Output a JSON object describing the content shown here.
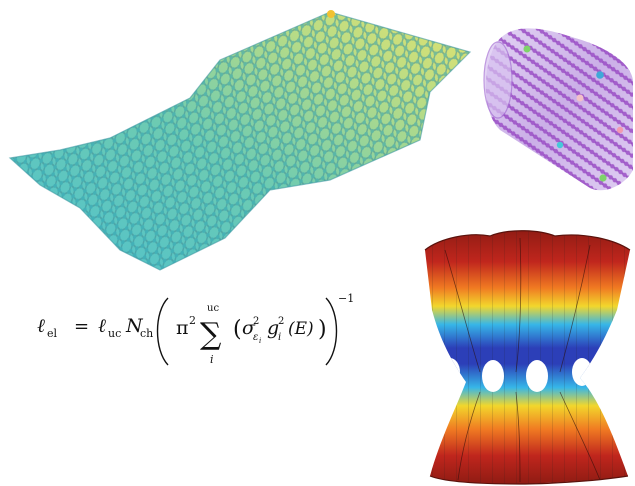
{
  "formula": {
    "lhs_symbol": "ℓ",
    "lhs_sub": "el",
    "equals": "=",
    "rhs_symbol": "ℓ",
    "rhs_sub": "uc",
    "n_symbol": "N",
    "n_sub": "ch",
    "pi": "π",
    "pi_exp": "2",
    "sigma": "∑",
    "sum_upper": "uc",
    "sum_lower": "i",
    "inner_sigma": "σ",
    "inner_sigma_exp": "2",
    "inner_sigma_sub": "ε",
    "inner_sigma_subsub": "i",
    "g_symbol": "g",
    "g_exp": "2",
    "g_sub": "i",
    "energy_arg": "(E)",
    "outer_exp": "−1"
  },
  "colors": {
    "graphene_start": "#4dc2cf",
    "graphene_mid": "#8fd4a3",
    "graphene_end": "#e8e267",
    "nanotube_atoms": "#a15cc6",
    "nanotube_shell": "#c9aee6",
    "band_red": "#c0261d",
    "band_yellow": "#f2d72c",
    "band_cyan": "#37b6e8",
    "band_blue": "#2c3fb8"
  },
  "illustrations": {
    "graphene": "graphene-sheet",
    "nanotube": "carbon-nanotube",
    "bands": "band-structure-surface"
  }
}
